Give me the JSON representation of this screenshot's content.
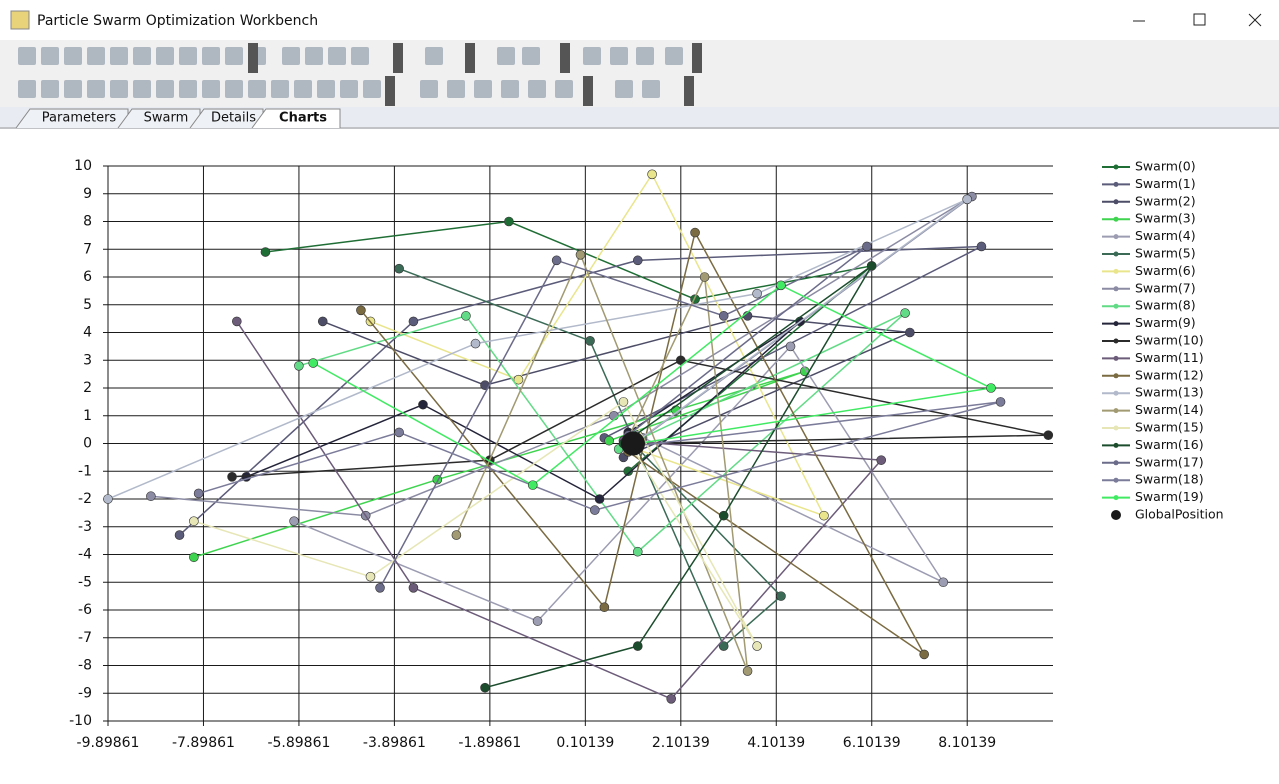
{
  "window_title": "Particle Swarm Optimization Workbench",
  "tabs": [
    "Parameters",
    "Swarm",
    "Details",
    "Charts"
  ],
  "active_tab": 3,
  "chart_data": {
    "type": "line",
    "xlim": [
      -9.89861,
      9.89861
    ],
    "ylim": [
      -10,
      10
    ],
    "xticks": [
      -9.89861,
      -7.89861,
      -5.89861,
      -3.89861,
      -1.89861,
      0.10139,
      2.10139,
      4.10139,
      6.10139,
      8.10139
    ],
    "yticks": [
      -10,
      -9,
      -8,
      -7,
      -6,
      -5,
      -4,
      -3,
      -2,
      -1,
      0,
      1,
      2,
      3,
      4,
      5,
      6,
      7,
      8,
      9,
      10
    ],
    "grid": true,
    "series": [
      {
        "name": "Swarm(0)",
        "color": "#1f6e35",
        "x": [
          -6.6,
          -1.5,
          2.4,
          6.1,
          1.0
        ],
        "values": [
          6.9,
          8.0,
          5.2,
          6.4,
          -1.0
        ]
      },
      {
        "name": "Swarm(1)",
        "color": "#5b5b7a",
        "x": [
          -8.4,
          -3.5,
          1.2,
          8.4,
          0.5
        ],
        "values": [
          -3.3,
          4.4,
          6.6,
          7.1,
          0.2
        ]
      },
      {
        "name": "Swarm(2)",
        "color": "#4d4d68",
        "x": [
          -5.4,
          -2.0,
          3.5,
          6.9,
          0.9
        ],
        "values": [
          4.4,
          2.1,
          4.6,
          4.0,
          -0.5
        ]
      },
      {
        "name": "Swarm(3)",
        "color": "#3fd44f",
        "x": [
          -8.1,
          -3.0,
          2.0,
          4.7,
          0.6
        ],
        "values": [
          -4.1,
          -1.3,
          1.2,
          2.6,
          0.1
        ]
      },
      {
        "name": "Swarm(4)",
        "color": "#9c9cb2",
        "x": [
          -6.0,
          -0.9,
          4.4,
          7.6,
          1.2
        ],
        "values": [
          -2.8,
          -6.4,
          3.5,
          -5.0,
          0.3
        ]
      },
      {
        "name": "Swarm(5)",
        "color": "#3b6b57",
        "x": [
          -3.8,
          0.2,
          3.0,
          4.2,
          1.1
        ],
        "values": [
          6.3,
          3.7,
          -7.3,
          -5.5,
          0.0
        ]
      },
      {
        "name": "Swarm(6)",
        "color": "#e9e58c",
        "x": [
          -4.4,
          -1.3,
          1.5,
          5.1,
          1.0
        ],
        "values": [
          4.4,
          2.3,
          9.7,
          -2.6,
          -0.1
        ]
      },
      {
        "name": "Swarm(7)",
        "color": "#8b8ba3",
        "x": [
          -9.0,
          -4.5,
          0.7,
          8.2,
          1.3
        ],
        "values": [
          -1.9,
          -2.6,
          1.0,
          8.9,
          0.2
        ]
      },
      {
        "name": "Swarm(8)",
        "color": "#62db86",
        "x": [
          -5.9,
          -2.4,
          1.2,
          6.8,
          0.8
        ],
        "values": [
          2.8,
          4.6,
          -3.9,
          4.7,
          -0.2
        ]
      },
      {
        "name": "Swarm(9)",
        "color": "#24243a",
        "x": [
          -7.0,
          -3.3,
          0.4,
          4.6,
          1.0
        ],
        "values": [
          -1.2,
          1.4,
          -2.0,
          4.4,
          0.4
        ]
      },
      {
        "name": "Swarm(10)",
        "color": "#2b2b2b",
        "x": [
          -7.3,
          -1.9,
          2.1,
          9.8,
          1.1
        ],
        "values": [
          -1.2,
          -0.6,
          3.0,
          0.3,
          0.0
        ]
      },
      {
        "name": "Swarm(11)",
        "color": "#6c5c7a",
        "x": [
          -7.2,
          -3.5,
          1.9,
          6.3,
          0.9
        ],
        "values": [
          4.4,
          -5.2,
          -9.2,
          -0.6,
          0.1
        ]
      },
      {
        "name": "Swarm(12)",
        "color": "#7b6b42",
        "x": [
          -4.6,
          0.5,
          2.4,
          7.2,
          1.0
        ],
        "values": [
          4.8,
          -5.9,
          7.6,
          -7.6,
          -0.3
        ]
      },
      {
        "name": "Swarm(13)",
        "color": "#b1b9ca",
        "x": [
          -9.9,
          -2.2,
          3.7,
          8.1,
          1.2
        ],
        "values": [
          -2.0,
          3.6,
          5.4,
          8.8,
          0.1
        ]
      },
      {
        "name": "Swarm(14)",
        "color": "#a19a72",
        "x": [
          -2.6,
          0.0,
          3.5,
          2.6,
          1.0
        ],
        "values": [
          -3.3,
          6.8,
          -8.2,
          6.0,
          0.2
        ]
      },
      {
        "name": "Swarm(15)",
        "color": "#e6e6b6",
        "x": [
          -8.1,
          -4.4,
          0.9,
          3.7,
          1.1
        ],
        "values": [
          -2.8,
          -4.8,
          1.5,
          -7.3,
          -0.2
        ]
      },
      {
        "name": "Swarm(16)",
        "color": "#1b4d2d",
        "x": [
          -2.0,
          1.2,
          3.0,
          6.1,
          0.9
        ],
        "values": [
          -8.8,
          -7.3,
          -2.6,
          6.4,
          0.0
        ]
      },
      {
        "name": "Swarm(17)",
        "color": "#6b6b8a",
        "x": [
          -4.2,
          -0.5,
          3.0,
          6.0,
          1.0
        ],
        "values": [
          -5.2,
          6.6,
          4.6,
          7.1,
          0.3
        ]
      },
      {
        "name": "Swarm(18)",
        "color": "#7b7b9a",
        "x": [
          -8.0,
          -3.8,
          0.3,
          8.8,
          1.1
        ],
        "values": [
          -1.8,
          0.4,
          -2.4,
          1.5,
          -0.1
        ]
      },
      {
        "name": "Swarm(19)",
        "color": "#40ea62",
        "x": [
          -5.6,
          -1.0,
          4.2,
          8.6,
          1.2
        ],
        "values": [
          2.9,
          -1.5,
          5.7,
          2.0,
          0.0
        ]
      },
      {
        "name": "GlobalPosition",
        "color": "#1a1a1a",
        "x": [
          1.1
        ],
        "values": [
          0.0
        ]
      }
    ]
  }
}
